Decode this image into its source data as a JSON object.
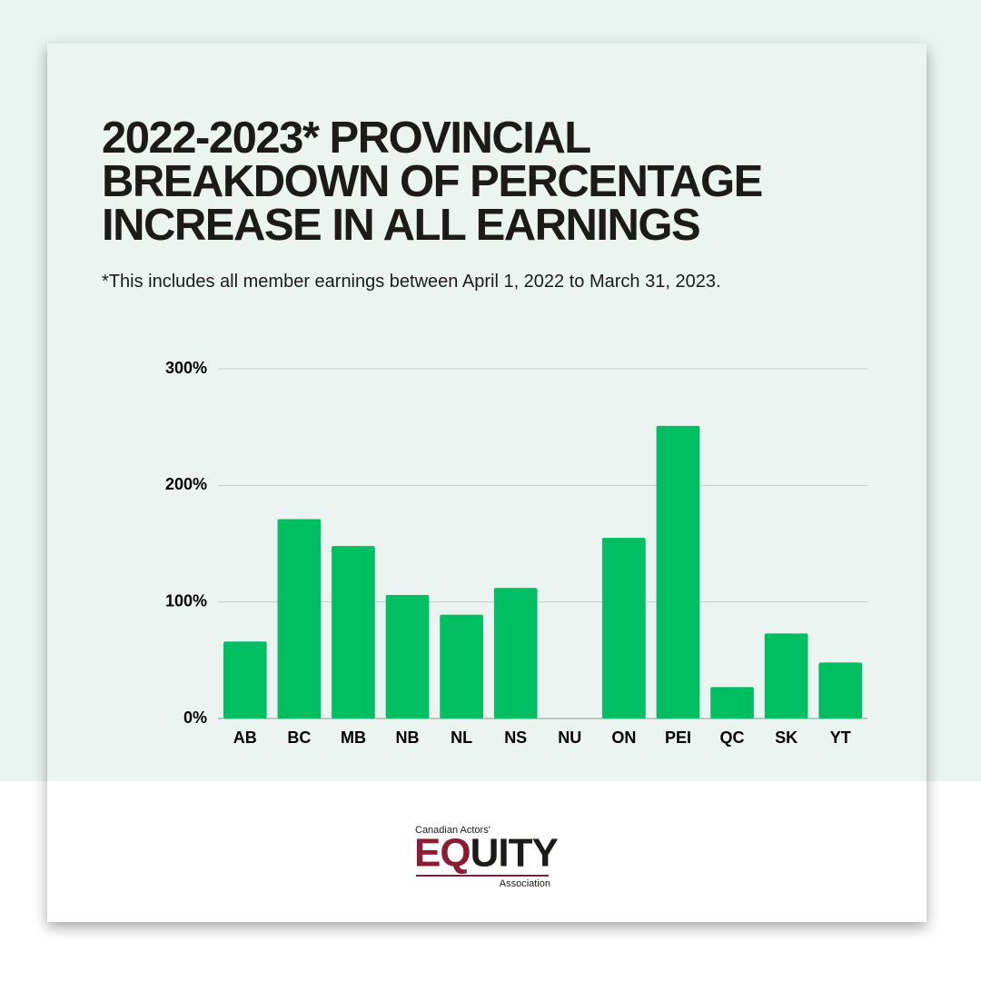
{
  "chart_data": {
    "type": "bar",
    "title": "2022-2023* PROVINCIAL BREAKDOWN OF PERCENTAGE INCREASE IN ALL EARNINGS",
    "subtitle": "*This includes all member earnings between April 1, 2022 to March 31, 2023.",
    "categories": [
      "AB",
      "BC",
      "MB",
      "NB",
      "NL",
      "NS",
      "NU",
      "ON",
      "PEI",
      "QC",
      "SK",
      "YT"
    ],
    "values": [
      66,
      171,
      148,
      106,
      89,
      112,
      0,
      155,
      251,
      27,
      73,
      48
    ],
    "color": "#00bf63",
    "ylim": [
      0,
      300
    ],
    "yticks": [
      {
        "value": 0,
        "label": "0%"
      },
      {
        "value": 100,
        "label": "100%"
      },
      {
        "value": 200,
        "label": "200%"
      },
      {
        "value": 300,
        "label": "300%"
      }
    ],
    "grid": true
  },
  "logo": {
    "top": "Canadian Actors'",
    "name": "EQUITY",
    "bottom": "Association"
  }
}
